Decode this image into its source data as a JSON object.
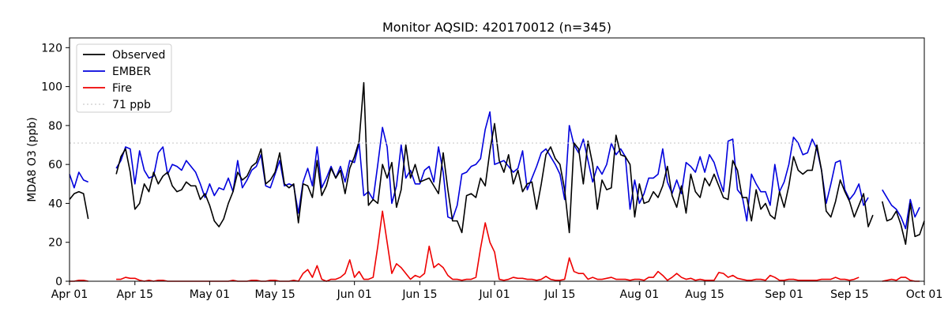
{
  "chart_data": {
    "type": "line",
    "title": "Monitor AQSID: 420170012 (n=345)",
    "xlabel": "",
    "ylabel": "MDA8 O3 (ppb)",
    "ylim": [
      0,
      125
    ],
    "xlim_days": [
      0,
      183
    ],
    "x_ticks": [
      {
        "day": 0,
        "label": "Apr 01"
      },
      {
        "day": 14,
        "label": "Apr 15"
      },
      {
        "day": 30,
        "label": "May 01"
      },
      {
        "day": 44,
        "label": "May 15"
      },
      {
        "day": 61,
        "label": "Jun 01"
      },
      {
        "day": 75,
        "label": "Jun 15"
      },
      {
        "day": 91,
        "label": "Jul 01"
      },
      {
        "day": 105,
        "label": "Jul 15"
      },
      {
        "day": 122,
        "label": "Aug 01"
      },
      {
        "day": 136,
        "label": "Aug 15"
      },
      {
        "day": 153,
        "label": "Sep 01"
      },
      {
        "day": 167,
        "label": "Sep 15"
      },
      {
        "day": 183,
        "label": "Oct 01"
      }
    ],
    "y_ticks": [
      0,
      20,
      40,
      60,
      80,
      100,
      120
    ],
    "reference_line": {
      "value": 71,
      "label": "71 ppb",
      "color": "#cccccc"
    },
    "legend_position": "upper-left",
    "series": [
      {
        "name": "Observed",
        "color": "#000000",
        "segments": [
          {
            "start_day": 0,
            "values": [
              42,
              45,
              46,
              45,
              32
            ]
          },
          {
            "start_day": 10,
            "values": [
              55,
              64,
              68,
              56,
              37,
              40,
              50,
              46,
              56,
              50,
              54,
              56,
              49,
              46,
              47,
              51,
              49,
              49,
              42,
              45,
              39,
              31,
              28,
              32,
              40,
              46,
              56,
              52,
              54,
              59,
              61,
              68,
              50,
              52,
              56,
              66,
              50,
              48,
              50,
              30,
              50,
              49,
              43,
              62,
              44,
              49,
              58,
              53,
              57,
              45,
              58,
              64,
              72,
              102,
              39,
              42,
              40,
              60,
              53,
              61,
              38,
              47,
              70,
              53,
              60,
              51,
              52,
              53,
              49,
              45,
              66,
              47,
              31,
              31,
              25,
              44,
              45,
              43,
              53,
              49,
              67,
              81,
              62,
              56,
              65,
              50,
              57,
              46,
              50,
              51,
              37,
              50,
              65,
              69,
              63,
              60,
              47,
              25,
              71,
              68,
              50,
              72,
              60,
              37,
              52,
              47,
              48,
              75,
              65,
              64,
              60,
              33,
              50,
              40,
              41,
              46,
              43,
              49,
              59,
              44,
              38,
              49,
              35,
              55,
              46,
              43,
              53,
              49,
              55,
              49,
              43,
              42,
              62,
              57,
              43,
              43,
              31,
              47,
              37,
              40,
              34,
              32,
              46,
              38,
              49,
              64,
              57,
              55,
              57,
              57,
              70,
              57,
              36,
              33,
              41,
              52,
              46,
              41,
              33,
              39,
              45,
              28,
              34
            ]
          },
          {
            "start_day": 174,
            "values": [
              41,
              31,
              32,
              36,
              29,
              19,
              40,
              23,
              24,
              31
            ]
          }
        ]
      },
      {
        "name": "EMBER",
        "color": "#0000dd",
        "segments": [
          {
            "start_day": 0,
            "values": [
              55,
              48,
              56,
              52,
              51
            ]
          },
          {
            "start_day": 10,
            "values": [
              58,
              62,
              69,
              68,
              50,
              67,
              57,
              53,
              54,
              66,
              69,
              55,
              60,
              59,
              57,
              62,
              59,
              56,
              50,
              43,
              50,
              44,
              48,
              47,
              53,
              46,
              62,
              48,
              52,
              57,
              59,
              65,
              49,
              48,
              55,
              62,
              49,
              50,
              49,
              35,
              51,
              58,
              49,
              69,
              48,
              53,
              59,
              53,
              59,
              51,
              62,
              61,
              71,
              44,
              46,
              42,
              60,
              79,
              69,
              40,
              49,
              70,
              53,
              57,
              50,
              50,
              57,
              59,
              51,
              69,
              56,
              33,
              32,
              39,
              55,
              56,
              59,
              60,
              63,
              78,
              87,
              60,
              61,
              62,
              59,
              56,
              58,
              67,
              47,
              53,
              59,
              66,
              68,
              64,
              60,
              55,
              42,
              80,
              70,
              66,
              73,
              62,
              51,
              59,
              55,
              60,
              71,
              65,
              68,
              64,
              37,
              52,
              40,
              45,
              53,
              53,
              55,
              68,
              51,
              45,
              52,
              45,
              61,
              59,
              56,
              64,
              56,
              65,
              61,
              53,
              46,
              72,
              73,
              47,
              44,
              31,
              55,
              50,
              46,
              46,
              39,
              60,
              46,
              51,
              60,
              74,
              71,
              65,
              66,
              73,
              68,
              57,
              40,
              50,
              61,
              62,
              47,
              42,
              45,
              50,
              39,
              43
            ]
          },
          {
            "start_day": 174,
            "values": [
              47,
              43,
              39,
              37,
              33,
              27,
              42,
              33,
              38
            ]
          }
        ]
      },
      {
        "name": "Fire",
        "color": "#ee0000",
        "segments": [
          {
            "start_day": 0,
            "values": [
              0,
              0,
              0.5,
              0.5,
              0
            ]
          },
          {
            "start_day": 10,
            "values": [
              1,
              1,
              2,
              1.5,
              1.5,
              0.5,
              0,
              0.5,
              0,
              0.5,
              0.5,
              0,
              0,
              0,
              0,
              0,
              0,
              0,
              0,
              0,
              0,
              0,
              0,
              0,
              0,
              0.5,
              0,
              0,
              0,
              0.5,
              0.5,
              0,
              0,
              0.5,
              0.5,
              0,
              0,
              0,
              0.5,
              0,
              4,
              6,
              2,
              8,
              1,
              0,
              1,
              1,
              2,
              4,
              11,
              2,
              5,
              1,
              1,
              2,
              18,
              36,
              20,
              4,
              9,
              7,
              4,
              1,
              3,
              2,
              4,
              18,
              7,
              9,
              7,
              3,
              1,
              1,
              0.5,
              1,
              1,
              2,
              17,
              30,
              20,
              15,
              1,
              0.5,
              1,
              2,
              1.5,
              1.5,
              1,
              1,
              0.5,
              1,
              2.5,
              1,
              0.5,
              0.5,
              1,
              12,
              5,
              4,
              4,
              1,
              2,
              1,
              1,
              1.5,
              2,
              1,
              1,
              1,
              0.5,
              1,
              1,
              0.5,
              2,
              2,
              5,
              3,
              0.5,
              2,
              4,
              2,
              1,
              1.5,
              0.5,
              1,
              0.5,
              0.5,
              0.5,
              4.5,
              4,
              2,
              3,
              1.5,
              1,
              0.5,
              0.5,
              1,
              1,
              0.5,
              3,
              2,
              0.5,
              0.5,
              1,
              1,
              0.5,
              0.5,
              0.5,
              0.5,
              0.5,
              1,
              1,
              1,
              2,
              1,
              1,
              0.5,
              1,
              2
            ]
          },
          {
            "start_day": 174,
            "values": [
              0,
              0.5,
              1,
              0.5,
              2,
              2,
              0.5,
              0,
              0
            ]
          }
        ]
      }
    ]
  }
}
